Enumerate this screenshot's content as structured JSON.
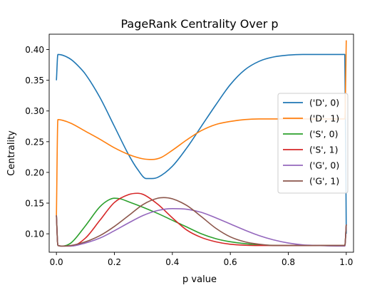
{
  "chart_data": {
    "type": "line",
    "title": "PageRank Centrality Over p",
    "xlabel": "p value",
    "ylabel": "Centrality",
    "xlim": [
      -0.025,
      1.025
    ],
    "ylim": [
      0.07,
      0.425
    ],
    "xticks": [
      "0.0",
      "0.2",
      "0.4",
      "0.6",
      "0.8",
      "1.0"
    ],
    "yticks": [
      "0.10",
      "0.15",
      "0.20",
      "0.25",
      "0.30",
      "0.35",
      "0.40"
    ],
    "grid": false,
    "legend_position": "center-right",
    "series": [
      {
        "name": "('D', 0)",
        "color": "#1f77b4",
        "x": [
          0.0,
          0.005,
          0.02,
          0.05,
          0.08,
          0.1,
          0.15,
          0.2,
          0.25,
          0.28,
          0.31,
          0.33,
          0.35,
          0.4,
          0.45,
          0.5,
          0.55,
          0.6,
          0.65,
          0.7,
          0.75,
          0.8,
          0.85,
          0.9,
          0.95,
          0.99,
          0.995,
          1.0
        ],
        "y": [
          0.35,
          0.392,
          0.391,
          0.384,
          0.371,
          0.36,
          0.322,
          0.275,
          0.228,
          0.205,
          0.19,
          0.19,
          0.192,
          0.21,
          0.24,
          0.275,
          0.31,
          0.343,
          0.367,
          0.381,
          0.388,
          0.391,
          0.392,
          0.392,
          0.392,
          0.392,
          0.392,
          0.1
        ]
      },
      {
        "name": "('D', 1)",
        "color": "#ff7f0e",
        "x": [
          0.0,
          0.005,
          0.02,
          0.05,
          0.1,
          0.15,
          0.2,
          0.25,
          0.3,
          0.33,
          0.36,
          0.4,
          0.45,
          0.5,
          0.55,
          0.6,
          0.65,
          0.7,
          0.8,
          0.9,
          0.95,
          0.99,
          0.995,
          1.0
        ],
        "y": [
          0.13,
          0.286,
          0.285,
          0.28,
          0.267,
          0.254,
          0.24,
          0.229,
          0.222,
          0.221,
          0.224,
          0.236,
          0.253,
          0.268,
          0.278,
          0.283,
          0.286,
          0.287,
          0.287,
          0.287,
          0.287,
          0.287,
          0.287,
          0.415
        ]
      },
      {
        "name": "('S', 0)",
        "color": "#2ca02c",
        "x": [
          0.0,
          0.005,
          0.02,
          0.05,
          0.1,
          0.15,
          0.18,
          0.2,
          0.22,
          0.25,
          0.3,
          0.35,
          0.4,
          0.45,
          0.5,
          0.55,
          0.6,
          0.7,
          0.8,
          0.9,
          0.99,
          0.995,
          1.0
        ],
        "y": [
          0.13,
          0.081,
          0.08,
          0.085,
          0.113,
          0.144,
          0.155,
          0.158,
          0.157,
          0.152,
          0.143,
          0.133,
          0.122,
          0.111,
          0.1,
          0.092,
          0.087,
          0.082,
          0.081,
          0.081,
          0.081,
          0.081,
          0.115
        ]
      },
      {
        "name": "('S', 1)",
        "color": "#d62728",
        "x": [
          0.0,
          0.005,
          0.02,
          0.05,
          0.1,
          0.15,
          0.2,
          0.25,
          0.28,
          0.3,
          0.35,
          0.4,
          0.45,
          0.5,
          0.55,
          0.6,
          0.7,
          0.8,
          0.9,
          0.99,
          0.995,
          1.0
        ],
        "y": [
          0.13,
          0.081,
          0.08,
          0.08,
          0.093,
          0.122,
          0.151,
          0.164,
          0.166,
          0.164,
          0.148,
          0.126,
          0.106,
          0.094,
          0.087,
          0.083,
          0.081,
          0.081,
          0.081,
          0.081,
          0.081,
          0.115
        ]
      },
      {
        "name": "('G', 0)",
        "color": "#9467bd",
        "x": [
          0.0,
          0.005,
          0.02,
          0.05,
          0.1,
          0.15,
          0.2,
          0.25,
          0.3,
          0.35,
          0.4,
          0.45,
          0.5,
          0.55,
          0.6,
          0.65,
          0.7,
          0.75,
          0.8,
          0.85,
          0.9,
          0.99,
          0.995,
          1.0
        ],
        "y": [
          0.13,
          0.081,
          0.08,
          0.08,
          0.085,
          0.093,
          0.105,
          0.118,
          0.13,
          0.138,
          0.141,
          0.14,
          0.135,
          0.126,
          0.116,
          0.106,
          0.097,
          0.09,
          0.085,
          0.082,
          0.081,
          0.08,
          0.08,
          0.115
        ]
      },
      {
        "name": "('G', 1)",
        "color": "#8c564b",
        "x": [
          0.0,
          0.005,
          0.02,
          0.05,
          0.1,
          0.15,
          0.2,
          0.25,
          0.3,
          0.35,
          0.37,
          0.4,
          0.45,
          0.5,
          0.55,
          0.6,
          0.65,
          0.7,
          0.75,
          0.8,
          0.9,
          0.99,
          0.995,
          1.0
        ],
        "y": [
          0.13,
          0.081,
          0.08,
          0.081,
          0.087,
          0.097,
          0.112,
          0.13,
          0.148,
          0.158,
          0.159,
          0.157,
          0.146,
          0.128,
          0.109,
          0.095,
          0.087,
          0.083,
          0.081,
          0.081,
          0.081,
          0.081,
          0.081,
          0.115
        ]
      }
    ]
  }
}
